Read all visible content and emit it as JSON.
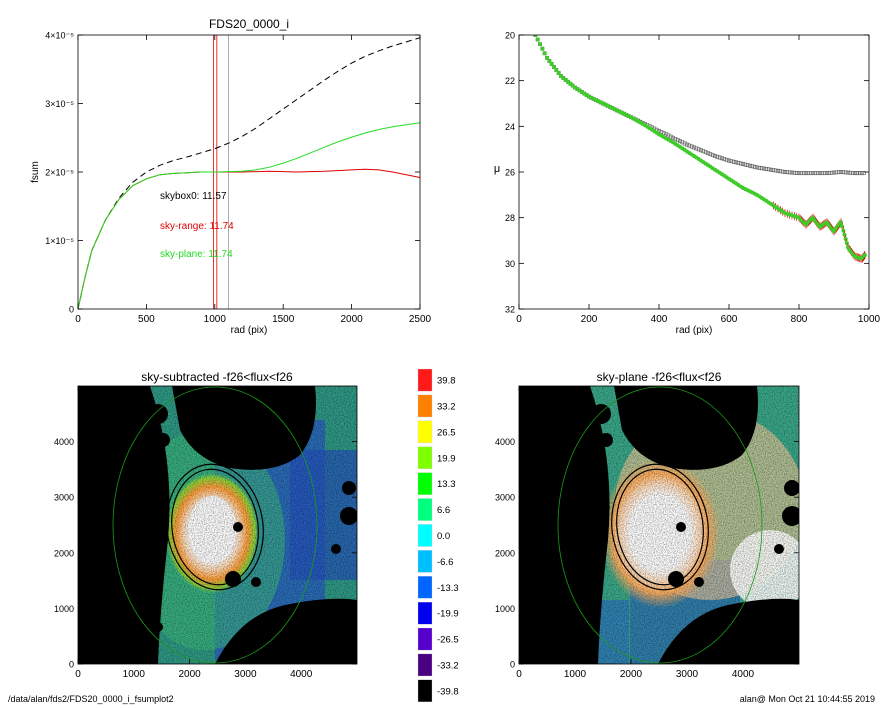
{
  "chart_data": [
    {
      "type": "line",
      "title": "FDS20_0000_i",
      "xlabel": "rad (pix)",
      "ylabel": "fsum",
      "xlim": [
        0,
        2500
      ],
      "ylim": [
        0,
        4e-05
      ],
      "x_ticks": [
        "0",
        "500",
        "1000",
        "1500",
        "2000",
        "2500"
      ],
      "y_tick_values": [
        0,
        1e-05,
        2e-05,
        3e-05,
        4e-05
      ],
      "y_ticks": [
        "0",
        "1×10⁻⁵",
        "2×10⁻⁵",
        "3×10⁻⁵",
        "4×10⁻⁵"
      ],
      "vlines": [
        {
          "x": 990,
          "color": "#e00000"
        },
        {
          "x": 1015,
          "color": "#e00000"
        },
        {
          "x": 1100,
          "color": "#999999"
        }
      ],
      "annotations": [
        {
          "text": "skybox0: 11.57",
          "color": "#000000"
        },
        {
          "text": "sky-range: 11.74",
          "color": "#e00000"
        },
        {
          "text": "sky-plane: 11.74",
          "color": "#22dd22"
        }
      ],
      "series": [
        {
          "style": "dashed",
          "color": "#000000",
          "x": [
            0,
            50,
            100,
            200,
            300,
            400,
            500,
            600,
            700,
            800,
            900,
            1000,
            1100,
            1200,
            1300,
            1400,
            1500,
            1600,
            1700,
            1800,
            1900,
            2000,
            2100,
            2200,
            2300,
            2400,
            2500
          ],
          "y": [
            0,
            4.5e-06,
            8.5e-06,
            1.3e-05,
            1.62e-05,
            1.85e-05,
            2e-05,
            2.1e-05,
            2.17e-05,
            2.22e-05,
            2.28e-05,
            2.34e-05,
            2.42e-05,
            2.52e-05,
            2.64e-05,
            2.78e-05,
            2.92e-05,
            3.06e-05,
            3.2e-05,
            3.34e-05,
            3.47e-05,
            3.59e-05,
            3.69e-05,
            3.77e-05,
            3.84e-05,
            3.9e-05,
            3.96e-05
          ]
        },
        {
          "style": "solid",
          "color": "#e00000",
          "x": [
            0,
            50,
            100,
            200,
            300,
            400,
            500,
            600,
            700,
            800,
            900,
            1000,
            1200,
            1400,
            1600,
            1800,
            1900,
            2000,
            2100,
            2200,
            2300,
            2400,
            2500
          ],
          "y": [
            0,
            4.5e-06,
            8.5e-06,
            1.3e-05,
            1.6e-05,
            1.8e-05,
            1.9e-05,
            1.96e-05,
            1.98e-05,
            1.99e-05,
            2e-05,
            2e-05,
            2e-05,
            2.01e-05,
            2e-05,
            2.01e-05,
            2.02e-05,
            2.03e-05,
            2.04e-05,
            2.03e-05,
            2e-05,
            1.96e-05,
            1.92e-05
          ]
        },
        {
          "style": "solid",
          "color": "#22dd22",
          "x": [
            0,
            50,
            100,
            200,
            300,
            400,
            500,
            600,
            700,
            800,
            900,
            1000,
            1200,
            1300,
            1400,
            1500,
            1600,
            1700,
            1800,
            1900,
            2000,
            2100,
            2200,
            2300,
            2400,
            2500
          ],
          "y": [
            0,
            4.5e-06,
            8.5e-06,
            1.3e-05,
            1.6e-05,
            1.8e-05,
            1.9e-05,
            1.96e-05,
            1.98e-05,
            1.99e-05,
            2e-05,
            2e-05,
            2.01e-05,
            2.03e-05,
            2.07e-05,
            2.13e-05,
            2.2e-05,
            2.28e-05,
            2.36e-05,
            2.44e-05,
            2.51e-05,
            2.57e-05,
            2.62e-05,
            2.66e-05,
            2.69e-05,
            2.72e-05
          ]
        }
      ]
    },
    {
      "type": "scatter",
      "title": "",
      "xlabel": "rad (pix)",
      "ylabel": "μ",
      "xlim": [
        0,
        1000
      ],
      "ylim": [
        32,
        20
      ],
      "x_ticks": [
        "0",
        "200",
        "400",
        "600",
        "800",
        "1000"
      ],
      "y_ticks": [
        "20",
        "22",
        "24",
        "26",
        "28",
        "30",
        "32"
      ],
      "series": [
        {
          "marker": "open-square",
          "color": "#555555",
          "x": [
            40,
            80,
            120,
            160,
            200,
            240,
            280,
            320,
            360,
            400,
            440,
            480,
            520,
            560,
            600,
            640,
            680,
            720,
            760,
            800,
            840,
            880,
            920,
            960,
            990
          ],
          "y": [
            19.8,
            21.0,
            21.8,
            22.3,
            22.7,
            23.0,
            23.3,
            23.6,
            23.9,
            24.2,
            24.5,
            24.8,
            25.05,
            25.3,
            25.5,
            25.65,
            25.8,
            25.9,
            26.0,
            26.05,
            26.05,
            26.05,
            26.0,
            26.05,
            26.05
          ]
        },
        {
          "marker": "filled-circle",
          "color": "#3fcc2a",
          "x": [
            40,
            80,
            120,
            160,
            200,
            240,
            280,
            320,
            360,
            400,
            440,
            480,
            520,
            560,
            600,
            640,
            680,
            720,
            760,
            800,
            820,
            840,
            860,
            880,
            900,
            920,
            940,
            960,
            980,
            990
          ],
          "y": [
            19.8,
            21.0,
            21.8,
            22.3,
            22.7,
            23.0,
            23.3,
            23.6,
            23.95,
            24.35,
            24.7,
            25.1,
            25.5,
            25.9,
            26.3,
            26.7,
            27.0,
            27.4,
            27.8,
            28.0,
            28.3,
            28.0,
            28.4,
            28.2,
            28.6,
            28.2,
            29.3,
            29.7,
            29.8,
            29.6
          ]
        }
      ]
    },
    {
      "type": "heatmap",
      "title": "sky-subtracted -f26<flux<f26",
      "xlim": [
        0,
        5000
      ],
      "ylim": [
        0,
        5000
      ],
      "x_ticks": [
        "0",
        "1000",
        "2000",
        "3000",
        "4000"
      ],
      "y_ticks": [
        "0",
        "1000",
        "2000",
        "3000",
        "4000"
      ]
    },
    {
      "type": "heatmap",
      "title": "sky-plane -f26<flux<f26",
      "xlim": [
        0,
        5000
      ],
      "ylim": [
        0,
        5000
      ],
      "x_ticks": [
        "0",
        "1000",
        "2000",
        "3000",
        "4000"
      ],
      "y_ticks": [
        "0",
        "1000",
        "2000",
        "3000",
        "4000"
      ]
    }
  ],
  "colorbar": {
    "labels": [
      "39.8",
      "33.2",
      "26.5",
      "19.9",
      "13.3",
      "6.6",
      "0.0",
      "-6.6",
      "-13.3",
      "-19.9",
      "-26.5",
      "-33.2",
      "-39.8"
    ],
    "colors": [
      "#ff1a1a",
      "#ff7f00",
      "#ffff00",
      "#7fff00",
      "#00ff00",
      "#00ff7f",
      "#00ffff",
      "#00bfff",
      "#0066ff",
      "#0000ee",
      "#5500cc",
      "#4b0082",
      "#000000"
    ]
  },
  "footer": {
    "left": "/data/alan/fds2/FDS20_0000_i_fsumplot2",
    "right": "alan@  Mon Oct 21 10:44:55 2019"
  }
}
